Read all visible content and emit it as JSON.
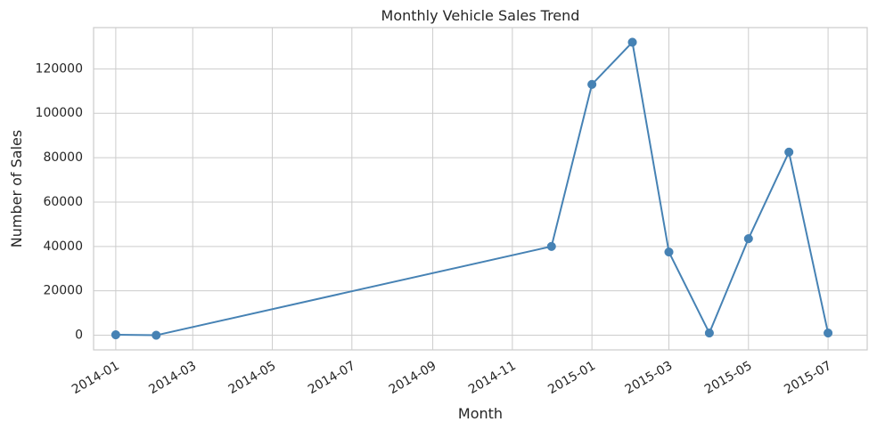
{
  "chart_data": {
    "type": "line",
    "title": "Monthly Vehicle Sales Trend",
    "xlabel": "Month",
    "ylabel": "Number of Sales",
    "grid": true,
    "xlim": [
      "2013-12-15",
      "2015-07-31"
    ],
    "ylim": [
      -6600,
      138600
    ],
    "x_ticks": [
      "2014-01",
      "2014-03",
      "2014-05",
      "2014-07",
      "2014-09",
      "2014-11",
      "2015-01",
      "2015-03",
      "2015-05",
      "2015-07"
    ],
    "y_ticks": [
      0,
      20000,
      40000,
      60000,
      80000,
      100000,
      120000
    ],
    "series": [
      {
        "color": "#4682b4",
        "x": [
          "2014-01",
          "2014-02",
          "2014-12",
          "2015-01",
          "2015-02",
          "2015-03",
          "2015-04",
          "2015-05",
          "2015-06",
          "2015-07"
        ],
        "y": [
          200,
          0,
          40000,
          113000,
          132000,
          37500,
          1000,
          43500,
          82500,
          1000
        ]
      }
    ]
  }
}
